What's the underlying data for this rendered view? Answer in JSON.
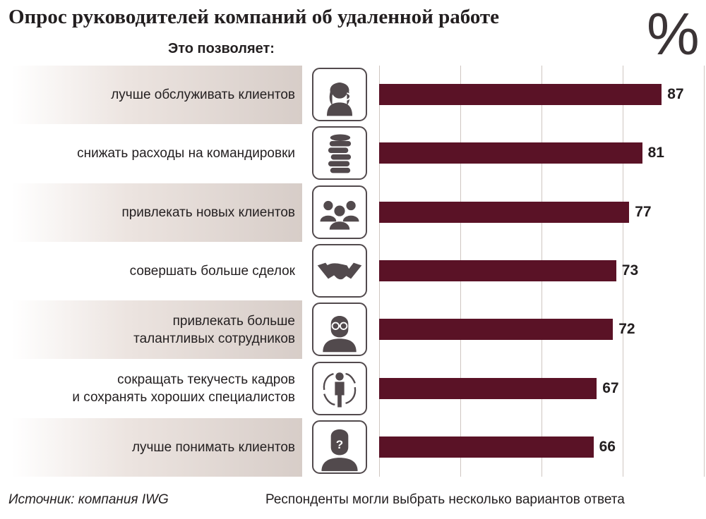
{
  "title": "Опрос руководителей компаний об удаленной работе",
  "unit_symbol": "%",
  "subtitle": "Это позволяет:",
  "footer": {
    "source": "Источник: компания IWG",
    "note": "Респонденты могли выбрать несколько вариантов ответа"
  },
  "colors": {
    "bar": "#5a1226",
    "band": "#d7cdc8",
    "grid": "#cfc6c1",
    "icon_stroke": "#524a4d"
  },
  "icons": [
    "headset-operator-icon",
    "coin-stack-icon",
    "group-people-icon",
    "handshake-icon",
    "person-glasses-icon",
    "person-cycle-arrows-icon",
    "person-question-icon"
  ],
  "chart_data": {
    "type": "bar",
    "orientation": "horizontal",
    "categories": [
      [
        "лучше обслуживать клиентов"
      ],
      [
        "снижать расходы на командировки"
      ],
      [
        "привлекать новых клиентов"
      ],
      [
        "совершать больше сделок"
      ],
      [
        "привлекать больше",
        "талантливых сотрудников"
      ],
      [
        "сокращать текучесть кадров",
        "и сохранять хороших специалистов"
      ],
      [
        "лучше понимать клиентов"
      ]
    ],
    "values": [
      87,
      81,
      77,
      73,
      72,
      67,
      66
    ],
    "xlim": [
      0,
      100
    ],
    "grid": true,
    "data_labels": true
  }
}
